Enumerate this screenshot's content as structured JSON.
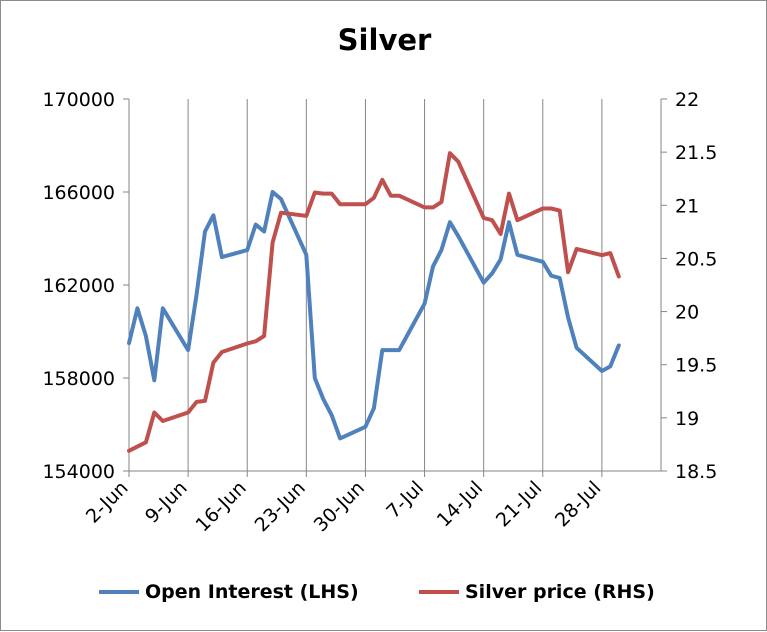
{
  "chart_data": {
    "type": "line",
    "title": "Silver",
    "x_tick_labels": [
      "2-Jun",
      "9-Jun",
      "16-Jun",
      "23-Jun",
      "30-Jun",
      "7-Jul",
      "14-Jul",
      "21-Jul",
      "28-Jul"
    ],
    "y_left": {
      "ticks": [
        "154000",
        "158000",
        "162000",
        "166000",
        "170000"
      ],
      "min": 154000,
      "max": 170000
    },
    "y_right": {
      "ticks": [
        "18.5",
        "19",
        "19.5",
        "20",
        "20.5",
        "21",
        "21.5",
        "22"
      ],
      "min": 18.5,
      "max": 22
    },
    "x_range_days": [
      0,
      63
    ],
    "grid": "vertical",
    "legend_position": "bottom",
    "series": [
      {
        "name": "Open Interest (LHS)",
        "axis": "left",
        "color": "#4f81bd",
        "x": [
          0,
          1,
          2,
          3,
          4,
          7,
          8,
          9,
          10,
          11,
          14,
          15,
          16,
          17,
          18,
          21,
          22,
          23,
          24,
          25,
          28,
          29,
          30,
          31,
          32,
          35,
          36,
          37,
          38,
          39,
          42,
          43,
          44,
          45,
          46,
          49,
          50,
          51,
          52,
          53,
          56,
          57,
          58,
          59,
          60,
          61
        ],
        "y": [
          159500,
          161000,
          159800,
          157900,
          161000,
          159200,
          161600,
          164300,
          165000,
          163200,
          163500,
          164600,
          164300,
          166000,
          165700,
          163300,
          158000,
          157100,
          156400,
          155400,
          155900,
          156700,
          159200,
          159200,
          159200,
          161200,
          162800,
          163500,
          164700,
          164100,
          162100,
          162500,
          163100,
          164700,
          163300,
          163000,
          162400,
          162300,
          160600,
          159300,
          158300,
          158500,
          159400,
          null,
          null,
          null
        ]
      },
      {
        "name": "Silver price (RHS)",
        "axis": "right",
        "color": "#c0504d",
        "x": [
          0,
          1,
          2,
          3,
          4,
          7,
          8,
          9,
          10,
          11,
          14,
          15,
          16,
          17,
          18,
          21,
          22,
          23,
          24,
          25,
          28,
          29,
          30,
          31,
          32,
          35,
          36,
          37,
          38,
          39,
          42,
          43,
          44,
          45,
          46,
          49,
          50,
          51,
          52,
          53,
          56,
          57,
          58
        ],
        "y": [
          18.69,
          18.73,
          18.77,
          19.05,
          18.97,
          19.05,
          19.15,
          19.16,
          19.52,
          19.62,
          19.7,
          19.72,
          19.77,
          20.65,
          20.93,
          20.9,
          21.12,
          21.11,
          21.11,
          21.01,
          21.01,
          21.07,
          21.24,
          21.09,
          21.09,
          20.98,
          20.98,
          21.03,
          21.49,
          21.41,
          20.88,
          20.86,
          20.73,
          21.11,
          20.86,
          20.97,
          20.97,
          20.95,
          20.37,
          20.59,
          20.53,
          20.55,
          20.33
        ]
      }
    ]
  }
}
